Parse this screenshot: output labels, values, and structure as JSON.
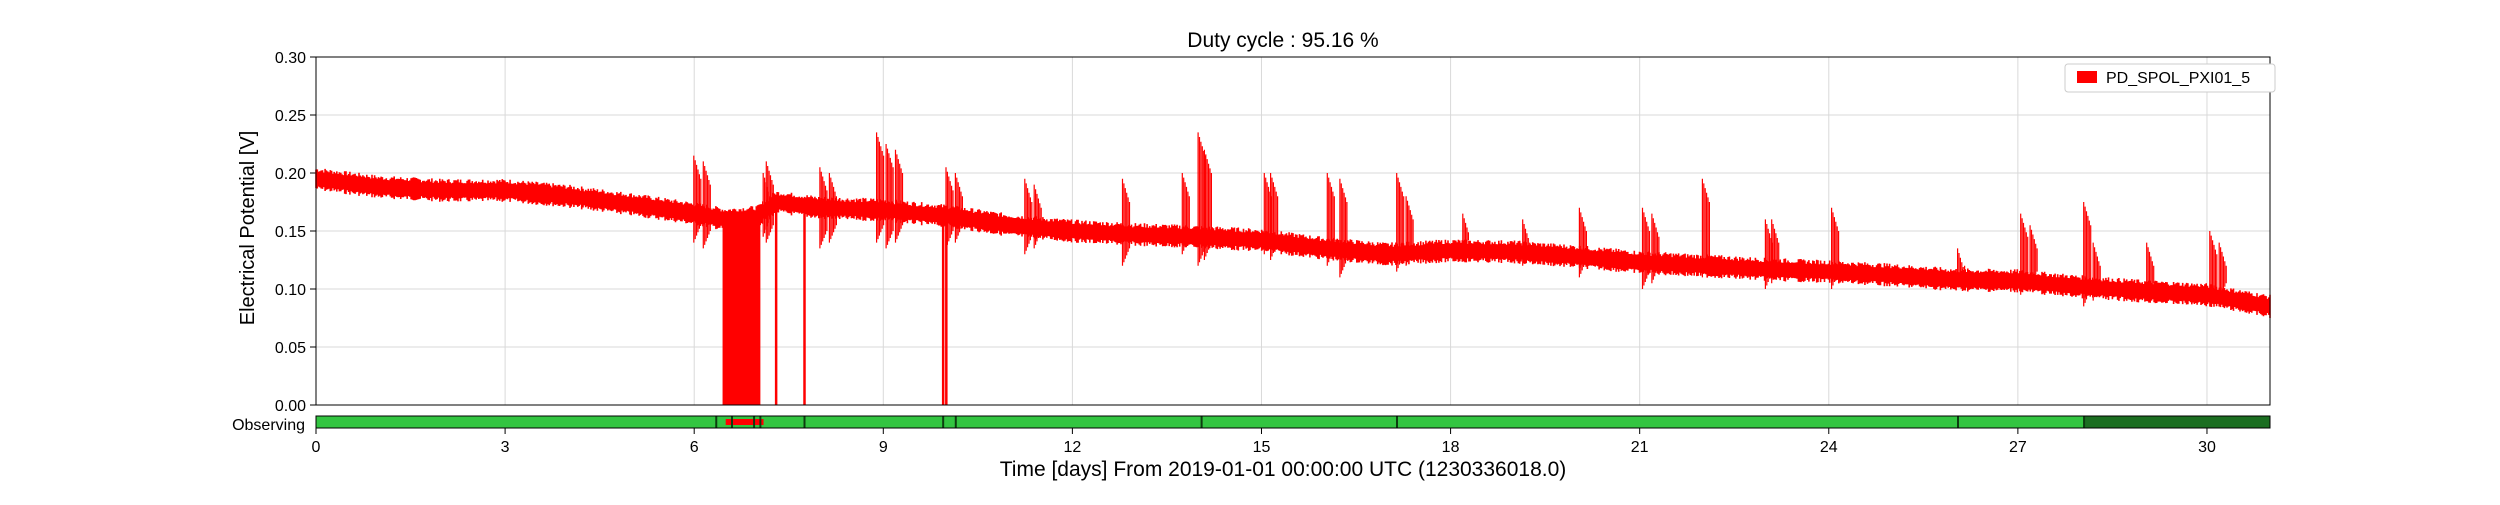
{
  "chart_data": {
    "type": "line",
    "title": "Duty cycle : 95.16 %",
    "xlabel": "Time [days] From 2019-01-01 00:00:00 UTC (1230336018.0)",
    "ylabel": "Electrical Potential [V]",
    "xlim": [
      0,
      31
    ],
    "ylim": [
      0,
      0.3
    ],
    "x_ticks": [
      0,
      3,
      6,
      9,
      12,
      15,
      18,
      21,
      24,
      27,
      30
    ],
    "y_ticks": [
      "0.00",
      "0.05",
      "0.10",
      "0.15",
      "0.20",
      "0.25",
      "0.30"
    ],
    "grid": true,
    "legend": {
      "position": "top-right"
    },
    "series": [
      {
        "name": "PD_SPOL_PXI01_5",
        "color": "#ff0000",
        "x": [
          0,
          1,
          2,
          3,
          4,
          5,
          6,
          6.5,
          7,
          7.3,
          8,
          9,
          10,
          11,
          12,
          13,
          14,
          15,
          16,
          17,
          18,
          19,
          20,
          21,
          22,
          23,
          24,
          25,
          26,
          27,
          28,
          29,
          30,
          31
        ],
        "y": [
          0.195,
          0.188,
          0.185,
          0.185,
          0.18,
          0.173,
          0.165,
          0.16,
          0.162,
          0.175,
          0.17,
          0.168,
          0.163,
          0.155,
          0.15,
          0.147,
          0.145,
          0.142,
          0.135,
          0.13,
          0.133,
          0.132,
          0.128,
          0.123,
          0.12,
          0.117,
          0.115,
          0.112,
          0.108,
          0.107,
          0.102,
          0.098,
          0.095,
          0.085
        ],
        "band_halfwidth": 0.008,
        "spikes": [
          {
            "x": 6.05,
            "min": 0.14,
            "max": 0.215
          },
          {
            "x": 6.2,
            "min": 0.135,
            "max": 0.21
          },
          {
            "x": 7.15,
            "min": 0.145,
            "max": 0.2
          },
          {
            "x": 7.2,
            "min": 0.14,
            "max": 0.21
          },
          {
            "x": 8.05,
            "min": 0.135,
            "max": 0.205
          },
          {
            "x": 8.2,
            "min": 0.14,
            "max": 0.2
          },
          {
            "x": 8.95,
            "min": 0.14,
            "max": 0.235
          },
          {
            "x": 9.1,
            "min": 0.135,
            "max": 0.225
          },
          {
            "x": 9.25,
            "min": 0.14,
            "max": 0.22
          },
          {
            "x": 10.05,
            "min": 0.135,
            "max": 0.205
          },
          {
            "x": 10.2,
            "min": 0.14,
            "max": 0.2
          },
          {
            "x": 11.3,
            "min": 0.13,
            "max": 0.195
          },
          {
            "x": 11.45,
            "min": 0.135,
            "max": 0.19
          },
          {
            "x": 12.85,
            "min": 0.12,
            "max": 0.195
          },
          {
            "x": 13.8,
            "min": 0.13,
            "max": 0.2
          },
          {
            "x": 14.05,
            "min": 0.12,
            "max": 0.235
          },
          {
            "x": 14.15,
            "min": 0.125,
            "max": 0.22
          },
          {
            "x": 15.1,
            "min": 0.13,
            "max": 0.2
          },
          {
            "x": 15.2,
            "min": 0.125,
            "max": 0.2
          },
          {
            "x": 16.1,
            "min": 0.12,
            "max": 0.2
          },
          {
            "x": 16.3,
            "min": 0.11,
            "max": 0.195
          },
          {
            "x": 17.2,
            "min": 0.115,
            "max": 0.2
          },
          {
            "x": 17.35,
            "min": 0.12,
            "max": 0.18
          },
          {
            "x": 18.25,
            "min": 0.13,
            "max": 0.165
          },
          {
            "x": 19.2,
            "min": 0.12,
            "max": 0.16
          },
          {
            "x": 20.1,
            "min": 0.11,
            "max": 0.17
          },
          {
            "x": 21.1,
            "min": 0.1,
            "max": 0.17
          },
          {
            "x": 21.25,
            "min": 0.105,
            "max": 0.165
          },
          {
            "x": 22.05,
            "min": 0.11,
            "max": 0.195
          },
          {
            "x": 23.05,
            "min": 0.1,
            "max": 0.16
          },
          {
            "x": 23.15,
            "min": 0.105,
            "max": 0.16
          },
          {
            "x": 24.1,
            "min": 0.1,
            "max": 0.17
          },
          {
            "x": 26.1,
            "min": 0.105,
            "max": 0.135
          },
          {
            "x": 27.1,
            "min": 0.095,
            "max": 0.165
          },
          {
            "x": 27.25,
            "min": 0.1,
            "max": 0.155
          },
          {
            "x": 28.1,
            "min": 0.085,
            "max": 0.175
          },
          {
            "x": 28.25,
            "min": 0.09,
            "max": 0.14
          },
          {
            "x": 29.1,
            "min": 0.09,
            "max": 0.14
          },
          {
            "x": 30.1,
            "min": 0.085,
            "max": 0.15
          },
          {
            "x": 30.25,
            "min": 0.09,
            "max": 0.14
          }
        ],
        "drops": [
          {
            "x_start": 6.45,
            "x_end": 7.05,
            "min": 0.0
          },
          {
            "x": 7.3,
            "min": 0.0
          },
          {
            "x": 7.75,
            "min": 0.0
          },
          {
            "x": 9.95,
            "min": 0.0
          },
          {
            "x": 10.0,
            "min": 0.0
          }
        ]
      }
    ],
    "segment_bar": {
      "label": "Observing",
      "colors": {
        "active": "#33c541",
        "late": "#1b6e21",
        "inactive": "#ff0000"
      },
      "late_start": 28.05,
      "inactive_intervals": [
        [
          6.5,
          7.1
        ]
      ],
      "gap_ticks": [
        6.35,
        6.6,
        6.95,
        7.05,
        7.75,
        9.95,
        10.15,
        14.05,
        17.15,
        26.05,
        28.05
      ]
    }
  }
}
